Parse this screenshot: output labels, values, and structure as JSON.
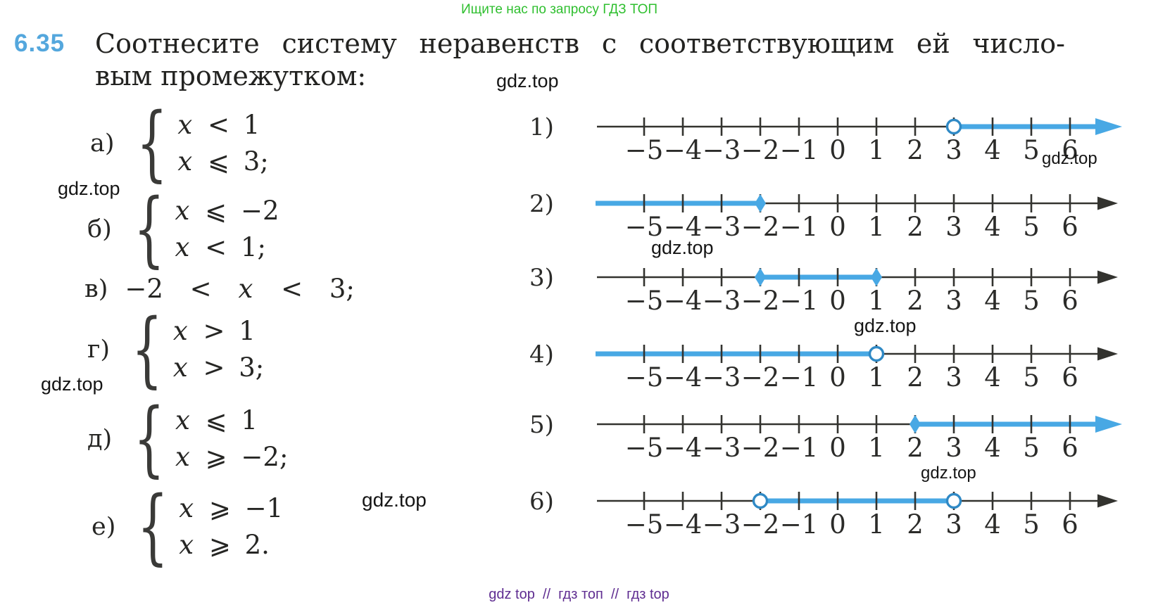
{
  "banners": {
    "top_text": "Ищите нас по запросу ГДЗ ТОП",
    "bottom_text": "gdz top  //  гдз топ  //  гдз top"
  },
  "watermark_text": "gdz.top",
  "problem": {
    "number": "6.35",
    "statement_line1": "Соотнесите систему неравенств с соответствующим ей число-",
    "statement_line2": "вым промежутком:",
    "items": [
      {
        "label": "а)",
        "type": "system",
        "lines": [
          "x < 1",
          "x ⩽ 3;"
        ]
      },
      {
        "label": "б)",
        "type": "system",
        "lines": [
          "x ⩽ −2",
          "x < 1;"
        ]
      },
      {
        "label": "в)",
        "type": "inline",
        "lines": [
          "−2 < x < 3;"
        ]
      },
      {
        "label": "г)",
        "type": "system",
        "lines": [
          "x > 1",
          "x > 3;"
        ]
      },
      {
        "label": "д)",
        "type": "system",
        "lines": [
          "x ⩽ 1",
          "x ⩾ −2;"
        ]
      },
      {
        "label": "е)",
        "type": "system",
        "lines": [
          "x ⩾ −1",
          "x ⩾ 2."
        ]
      }
    ]
  },
  "chart_data": {
    "type": "number-line-set",
    "axis": {
      "min": -5,
      "max": 6,
      "tick_labels": [
        "−5",
        "−4",
        "−3",
        "−2",
        "−1",
        "0",
        "1",
        "2",
        "3",
        "4",
        "5",
        "6"
      ]
    },
    "colors": {
      "highlight": "#48a8e4",
      "axis": "#33332f",
      "open_point_stroke": "#2f89c5"
    },
    "lines": [
      {
        "label": "1)",
        "start": 3,
        "end": null,
        "start_marker": "open",
        "end_marker": null,
        "arrow": "blue"
      },
      {
        "label": "2)",
        "start": null,
        "end": -2,
        "start_marker": null,
        "end_marker": "closed",
        "arrow": "black"
      },
      {
        "label": "3)",
        "start": -2,
        "end": 1,
        "start_marker": "closed",
        "end_marker": "closed",
        "arrow": "black"
      },
      {
        "label": "4)",
        "start": null,
        "end": 1,
        "start_marker": null,
        "end_marker": "open",
        "arrow": "black"
      },
      {
        "label": "5)",
        "start": 2,
        "end": null,
        "start_marker": "closed",
        "end_marker": null,
        "arrow": "blue"
      },
      {
        "label": "6)",
        "start": -2,
        "end": 3,
        "start_marker": "open",
        "end_marker": "open",
        "arrow": "black"
      }
    ]
  }
}
